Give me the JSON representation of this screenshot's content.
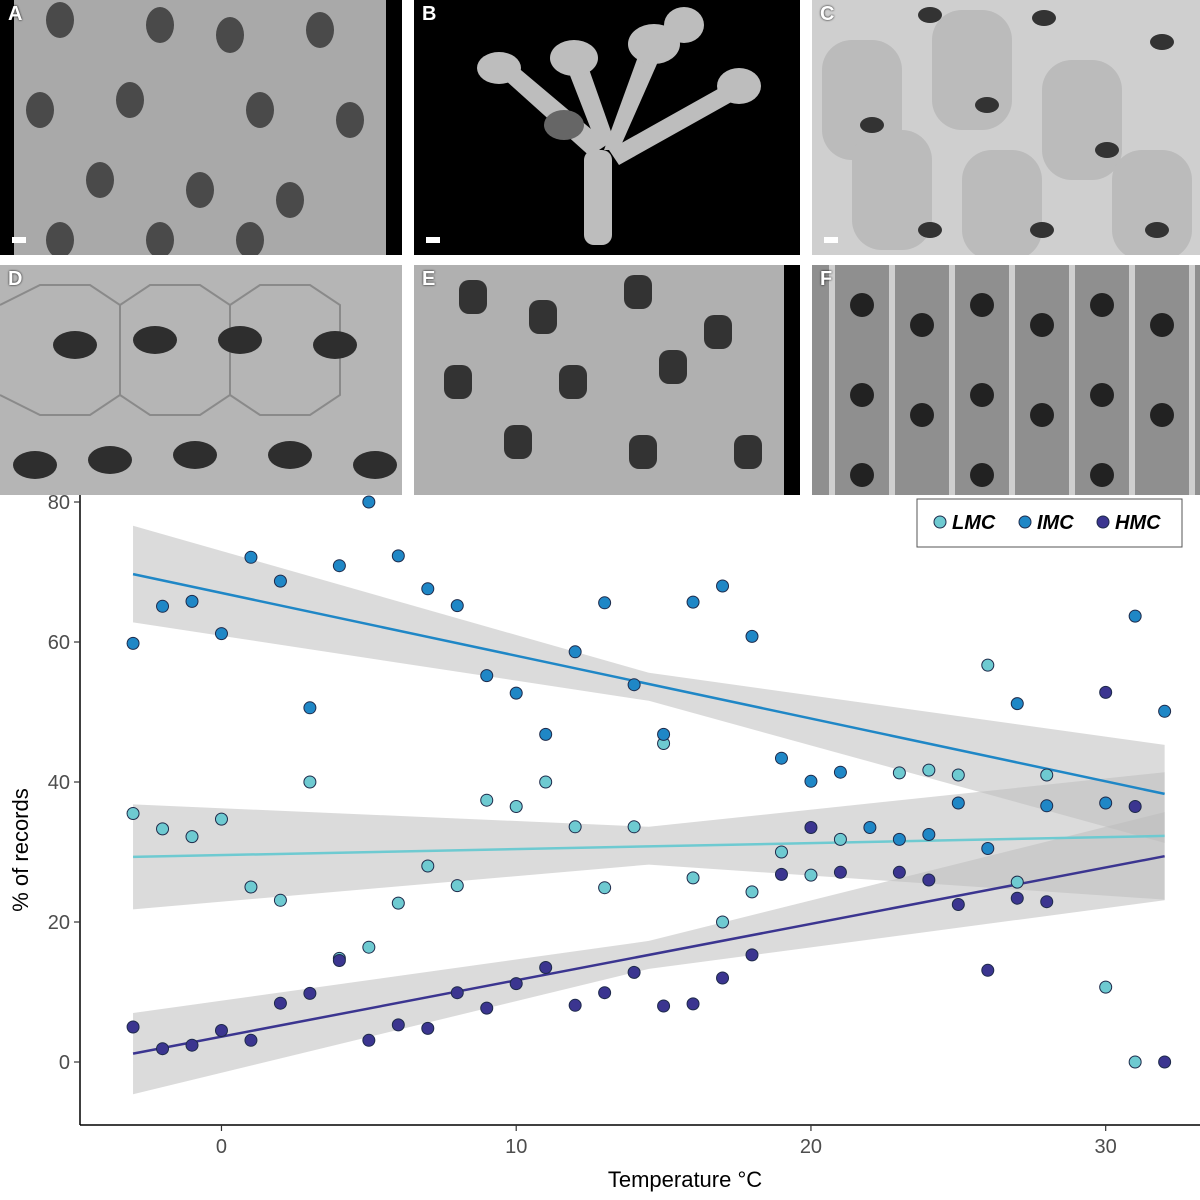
{
  "panels": [
    {
      "letter": "A",
      "style": "porous-orifices"
    },
    {
      "letter": "B",
      "style": "branching-colony"
    },
    {
      "letter": "C",
      "style": "smooth-zooids"
    },
    {
      "letter": "D",
      "style": "hexagonal-orifices"
    },
    {
      "letter": "E",
      "style": "deep-orifices"
    },
    {
      "letter": "F",
      "style": "ribbed-zooids"
    }
  ],
  "chart_data": {
    "type": "scatter",
    "xlabel": "Temperature °C",
    "ylabel": "% of records",
    "xlim": [
      -4.8,
      33.2
    ],
    "ylim": [
      -9,
      81
    ],
    "xticks": [
      0,
      10,
      20,
      30
    ],
    "yticks": [
      0,
      20,
      40,
      60,
      80
    ],
    "legend": {
      "position": "top-right"
    },
    "series": [
      {
        "name": "LMC",
        "color": "#6ecad1",
        "trend": {
          "x0": -3,
          "y0": 29.3,
          "x1": 32,
          "y1": 32.3
        },
        "ci": {
          "lo": [
            21.8,
            28.2,
            23.2
          ],
          "hi": [
            36.8,
            33.6,
            41.4
          ]
        },
        "points": [
          [
            -3,
            35.5
          ],
          [
            -2,
            33.3
          ],
          [
            -1,
            32.2
          ],
          [
            0,
            34.7
          ],
          [
            1,
            25
          ],
          [
            2,
            23.1
          ],
          [
            3,
            40
          ],
          [
            4,
            14.8
          ],
          [
            5,
            16.4
          ],
          [
            6,
            22.7
          ],
          [
            7,
            28
          ],
          [
            8,
            25.2
          ],
          [
            9,
            37.4
          ],
          [
            10,
            36.5
          ],
          [
            11,
            40
          ],
          [
            12,
            33.6
          ],
          [
            13,
            24.9
          ],
          [
            14,
            33.6
          ],
          [
            15,
            45.5
          ],
          [
            16,
            26.3
          ],
          [
            17,
            20
          ],
          [
            18,
            24.3
          ],
          [
            19,
            30
          ],
          [
            20,
            26.7
          ],
          [
            21,
            31.8
          ],
          [
            23,
            41.3
          ],
          [
            24,
            41.7
          ],
          [
            25,
            41
          ],
          [
            26,
            56.7
          ],
          [
            27,
            25.7
          ],
          [
            28,
            41
          ],
          [
            30,
            10.7
          ],
          [
            31,
            0
          ]
        ]
      },
      {
        "name": "IMC",
        "color": "#1f87c6",
        "trend": {
          "x0": -3,
          "y0": 69.7,
          "x1": 32,
          "y1": 38.3
        },
        "ci": {
          "lo": [
            62.8,
            51.6,
            31.3
          ],
          "hi": [
            76.6,
            55.6,
            45.3
          ]
        },
        "points": [
          [
            -3,
            59.8
          ],
          [
            -2,
            65.1
          ],
          [
            -1,
            65.8
          ],
          [
            0,
            61.2
          ],
          [
            1,
            72.1
          ],
          [
            2,
            68.7
          ],
          [
            3,
            50.6
          ],
          [
            4,
            70.9
          ],
          [
            5,
            80.8
          ],
          [
            6,
            72.3
          ],
          [
            7,
            67.6
          ],
          [
            8,
            65.2
          ],
          [
            9,
            55.2
          ],
          [
            10,
            52.7
          ],
          [
            11,
            46.8
          ],
          [
            12,
            58.6
          ],
          [
            13,
            65.6
          ],
          [
            14,
            53.9
          ],
          [
            15,
            46.8
          ],
          [
            16,
            65.7
          ],
          [
            17,
            68
          ],
          [
            18,
            60.8
          ],
          [
            19,
            43.4
          ],
          [
            20,
            40.1
          ],
          [
            21,
            41.4
          ],
          [
            22,
            33.5
          ],
          [
            23,
            31.8
          ],
          [
            24,
            32.5
          ],
          [
            25,
            37
          ],
          [
            26,
            30.5
          ],
          [
            27,
            51.2
          ],
          [
            28,
            36.6
          ],
          [
            30,
            37
          ],
          [
            31,
            63.7
          ],
          [
            32,
            50.1
          ]
        ]
      },
      {
        "name": "HMC",
        "color": "#3b3590",
        "trend": {
          "x0": -3,
          "y0": 1.2,
          "x1": 32,
          "y1": 29.4
        },
        "ci": {
          "lo": [
            -4.6,
            13.3,
            23.1
          ],
          "hi": [
            7.0,
            17.3,
            35.7
          ]
        },
        "points": [
          [
            -3,
            5
          ],
          [
            -2,
            1.9
          ],
          [
            -1,
            2.4
          ],
          [
            0,
            4.5
          ],
          [
            1,
            3.1
          ],
          [
            2,
            8.4
          ],
          [
            3,
            9.8
          ],
          [
            4,
            14.5
          ],
          [
            5,
            3.1
          ],
          [
            6,
            5.3
          ],
          [
            7,
            4.8
          ],
          [
            8,
            9.9
          ],
          [
            9,
            7.7
          ],
          [
            10,
            11.2
          ],
          [
            11,
            13.5
          ],
          [
            12,
            8.1
          ],
          [
            13,
            9.9
          ],
          [
            14,
            12.8
          ],
          [
            15,
            8
          ],
          [
            16,
            8.3
          ],
          [
            17,
            12
          ],
          [
            18,
            15.3
          ],
          [
            19,
            26.8
          ],
          [
            20,
            33.5
          ],
          [
            21,
            27.1
          ],
          [
            23,
            27.1
          ],
          [
            24,
            26
          ],
          [
            25,
            22.5
          ],
          [
            26,
            13.1
          ],
          [
            27,
            23.4
          ],
          [
            28,
            22.9
          ],
          [
            30,
            52.8
          ],
          [
            31,
            36.5
          ],
          [
            32,
            0
          ]
        ]
      }
    ]
  }
}
